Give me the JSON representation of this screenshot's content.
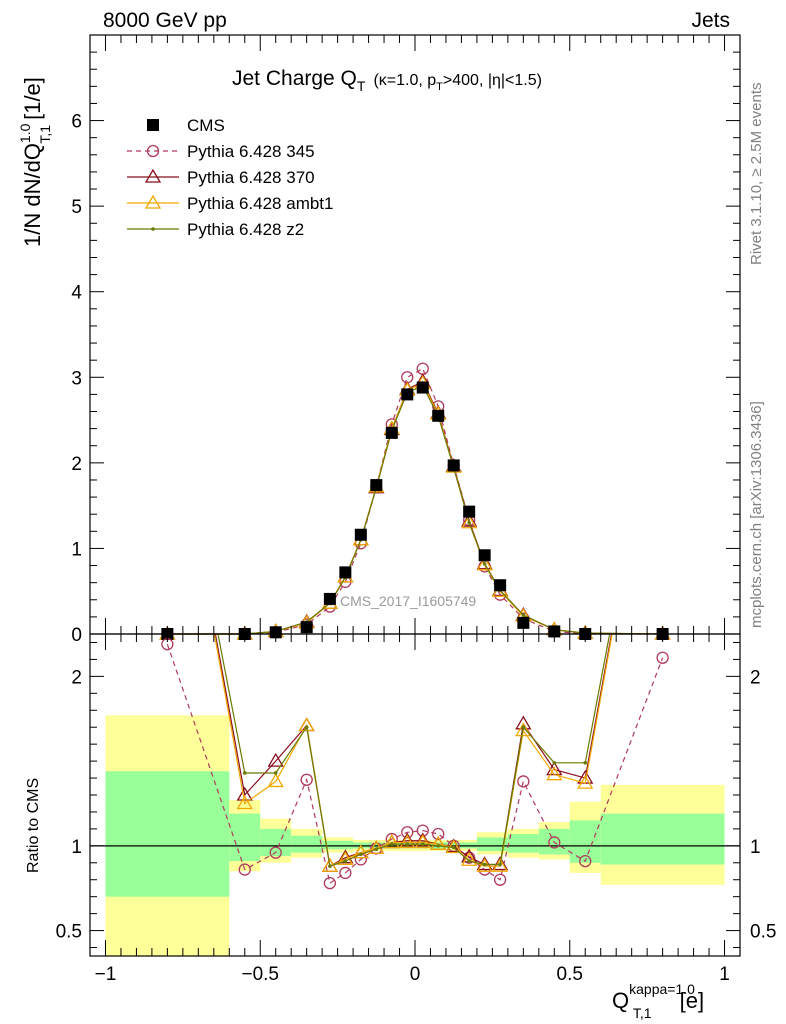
{
  "header": {
    "left": "8000 GeV pp",
    "right": "Jets"
  },
  "side_labels": {
    "rivet": "Rivet 3.1.10, ≥ 2.5M events",
    "mcplots": "mcplots.cern.ch [arXiv:1306.3436]"
  },
  "title": {
    "main": "Jet Charge Q",
    "main_sub": "T",
    "kappa": "(κ=1.0, p",
    "kappa_sub": "T",
    "rest": ">400, |η|<1.5)"
  },
  "watermark": "CMS_2017_I1605749",
  "ylabel_top": {
    "prefix": "1/N dN/dQ",
    "sup": "1.0",
    "sub": "T,1",
    "unit": "[1/e]"
  },
  "ylabel_bottom": "Ratio to CMS",
  "xlabel": {
    "base": "Q",
    "sup": "kappa=1.0",
    "sub": "T,1",
    "unit": "[e]"
  },
  "colors": {
    "cms": "#000000",
    "p345": "#b03a5b",
    "p370": "#8b0d1f",
    "ambt1": "#f0a800",
    "z2": "#6b7a00",
    "band_inner": "#99ff99",
    "band_outer": "#ffff99"
  },
  "chart_data": [
    {
      "type": "scatter",
      "panel": "main",
      "xlim": [
        -1.05,
        1.05
      ],
      "ylim": [
        0,
        7
      ],
      "yticks": [
        0,
        1,
        2,
        3,
        4,
        5,
        6
      ],
      "xticks": [
        -1,
        -0.5,
        0,
        0.5,
        1
      ],
      "xtick_labels": [
        "−1",
        "−0.5",
        "0",
        "0.5",
        "1"
      ],
      "x": [
        -0.8,
        -0.55,
        -0.45,
        -0.35,
        -0.275,
        -0.225,
        -0.175,
        -0.125,
        -0.075,
        -0.025,
        0.025,
        0.075,
        0.125,
        0.175,
        0.225,
        0.275,
        0.35,
        0.45,
        0.55,
        0.8
      ],
      "legend_position": "top-left",
      "series": [
        {
          "name": "CMS",
          "marker": "square",
          "values": [
            0.0,
            0.0,
            0.02,
            0.08,
            0.41,
            0.72,
            1.16,
            1.74,
            2.35,
            2.8,
            2.88,
            2.55,
            1.97,
            1.43,
            0.92,
            0.57,
            0.13,
            0.03,
            0.0,
            0.0
          ]
        },
        {
          "name": "Pythia 6.428 345",
          "marker": "circle",
          "values": [
            0.0,
            0.0,
            0.02,
            0.11,
            0.32,
            0.61,
            1.06,
            1.72,
            2.45,
            3.0,
            3.1,
            2.66,
            1.97,
            1.33,
            0.79,
            0.46,
            0.18,
            0.03,
            0.0,
            0.0
          ]
        },
        {
          "name": "Pythia 6.428 370",
          "marker": "triangle",
          "values": [
            0.0,
            0.0,
            0.03,
            0.14,
            0.36,
            0.67,
            1.1,
            1.71,
            2.39,
            2.86,
            2.95,
            2.58,
            1.96,
            1.32,
            0.82,
            0.51,
            0.22,
            0.05,
            0.01,
            0.0
          ]
        },
        {
          "name": "Pythia 6.428 ambt1",
          "marker": "triangle",
          "values": [
            0.0,
            0.0,
            0.03,
            0.13,
            0.36,
            0.67,
            1.1,
            1.72,
            2.4,
            2.85,
            2.93,
            2.57,
            1.95,
            1.3,
            0.81,
            0.5,
            0.21,
            0.05,
            0.01,
            0.0
          ]
        },
        {
          "name": "Pythia 6.428 z2",
          "marker": "dot",
          "values": [
            0.0,
            0.0,
            0.03,
            0.14,
            0.36,
            0.66,
            1.1,
            1.71,
            2.38,
            2.82,
            2.9,
            2.55,
            1.94,
            1.3,
            0.82,
            0.51,
            0.22,
            0.05,
            0.01,
            0.0
          ]
        }
      ]
    },
    {
      "type": "line",
      "panel": "ratio",
      "xlim": [
        -1.05,
        1.05
      ],
      "ylim": [
        0.35,
        2.25
      ],
      "yticks": [
        0.5,
        1,
        2
      ],
      "ytick_labels": [
        "0.5",
        "1",
        "2"
      ],
      "x": [
        -0.8,
        -0.55,
        -0.45,
        -0.35,
        -0.275,
        -0.225,
        -0.175,
        -0.125,
        -0.075,
        -0.025,
        0.025,
        0.075,
        0.125,
        0.175,
        0.225,
        0.275,
        0.35,
        0.45,
        0.55,
        0.8
      ],
      "bands": [
        {
          "x0": -1.0,
          "x1": -0.6,
          "inner": [
            0.7,
            1.44
          ],
          "outer": [
            0.35,
            1.77
          ]
        },
        {
          "x0": -0.6,
          "x1": -0.5,
          "inner": [
            0.91,
            1.19
          ],
          "outer": [
            0.85,
            1.27
          ]
        },
        {
          "x0": -0.5,
          "x1": -0.4,
          "inner": [
            0.94,
            1.1
          ],
          "outer": [
            0.9,
            1.16
          ]
        },
        {
          "x0": -0.4,
          "x1": -0.3,
          "inner": [
            0.96,
            1.06
          ],
          "outer": [
            0.93,
            1.1
          ]
        },
        {
          "x0": -0.3,
          "x1": -0.2,
          "inner": [
            0.98,
            1.03
          ],
          "outer": [
            0.96,
            1.05
          ]
        },
        {
          "x0": -0.2,
          "x1": 0.2,
          "inner": [
            0.985,
            1.02
          ],
          "outer": [
            0.97,
            1.035
          ]
        },
        {
          "x0": 0.2,
          "x1": 0.3,
          "inner": [
            0.97,
            1.05
          ],
          "outer": [
            0.95,
            1.08
          ]
        },
        {
          "x0": 0.3,
          "x1": 0.4,
          "inner": [
            0.96,
            1.07
          ],
          "outer": [
            0.93,
            1.1
          ]
        },
        {
          "x0": 0.4,
          "x1": 0.5,
          "inner": [
            0.95,
            1.1
          ],
          "outer": [
            0.92,
            1.14
          ]
        },
        {
          "x0": 0.5,
          "x1": 0.6,
          "inner": [
            0.9,
            1.15
          ],
          "outer": [
            0.84,
            1.26
          ]
        },
        {
          "x0": 0.6,
          "x1": 1.0,
          "inner": [
            0.89,
            1.19
          ],
          "outer": [
            0.77,
            1.36
          ]
        }
      ],
      "series": [
        {
          "name": "Pythia 6.428 345",
          "values": [
            2.19,
            0.86,
            0.96,
            1.39,
            0.78,
            0.84,
            0.92,
            0.985,
            1.04,
            1.08,
            1.09,
            1.07,
            1.0,
            0.93,
            0.86,
            0.8,
            1.38,
            1.02,
            0.91,
            2.11
          ]
        },
        {
          "name": "Pythia 6.428 370",
          "values": [
            3.8,
            1.3,
            1.5,
            1.71,
            0.88,
            0.93,
            0.96,
            0.985,
            1.02,
            1.03,
            1.03,
            1.01,
            0.995,
            0.935,
            0.89,
            0.89,
            1.72,
            1.45,
            1.4,
            3.9
          ]
        },
        {
          "name": "Pythia 6.428 ambt1",
          "values": [
            3.8,
            1.25,
            1.38,
            1.71,
            0.88,
            0.92,
            0.96,
            0.985,
            1.02,
            1.02,
            1.02,
            1.01,
            0.99,
            0.915,
            0.88,
            0.88,
            1.68,
            1.42,
            1.37,
            3.9
          ]
        },
        {
          "name": "Pythia 6.428 z2",
          "values": [
            3.8,
            1.43,
            1.43,
            1.7,
            0.88,
            0.91,
            0.95,
            0.98,
            1.01,
            1.01,
            1.01,
            1.0,
            0.99,
            0.91,
            0.89,
            0.89,
            1.7,
            1.49,
            1.49,
            3.9
          ]
        }
      ]
    }
  ]
}
